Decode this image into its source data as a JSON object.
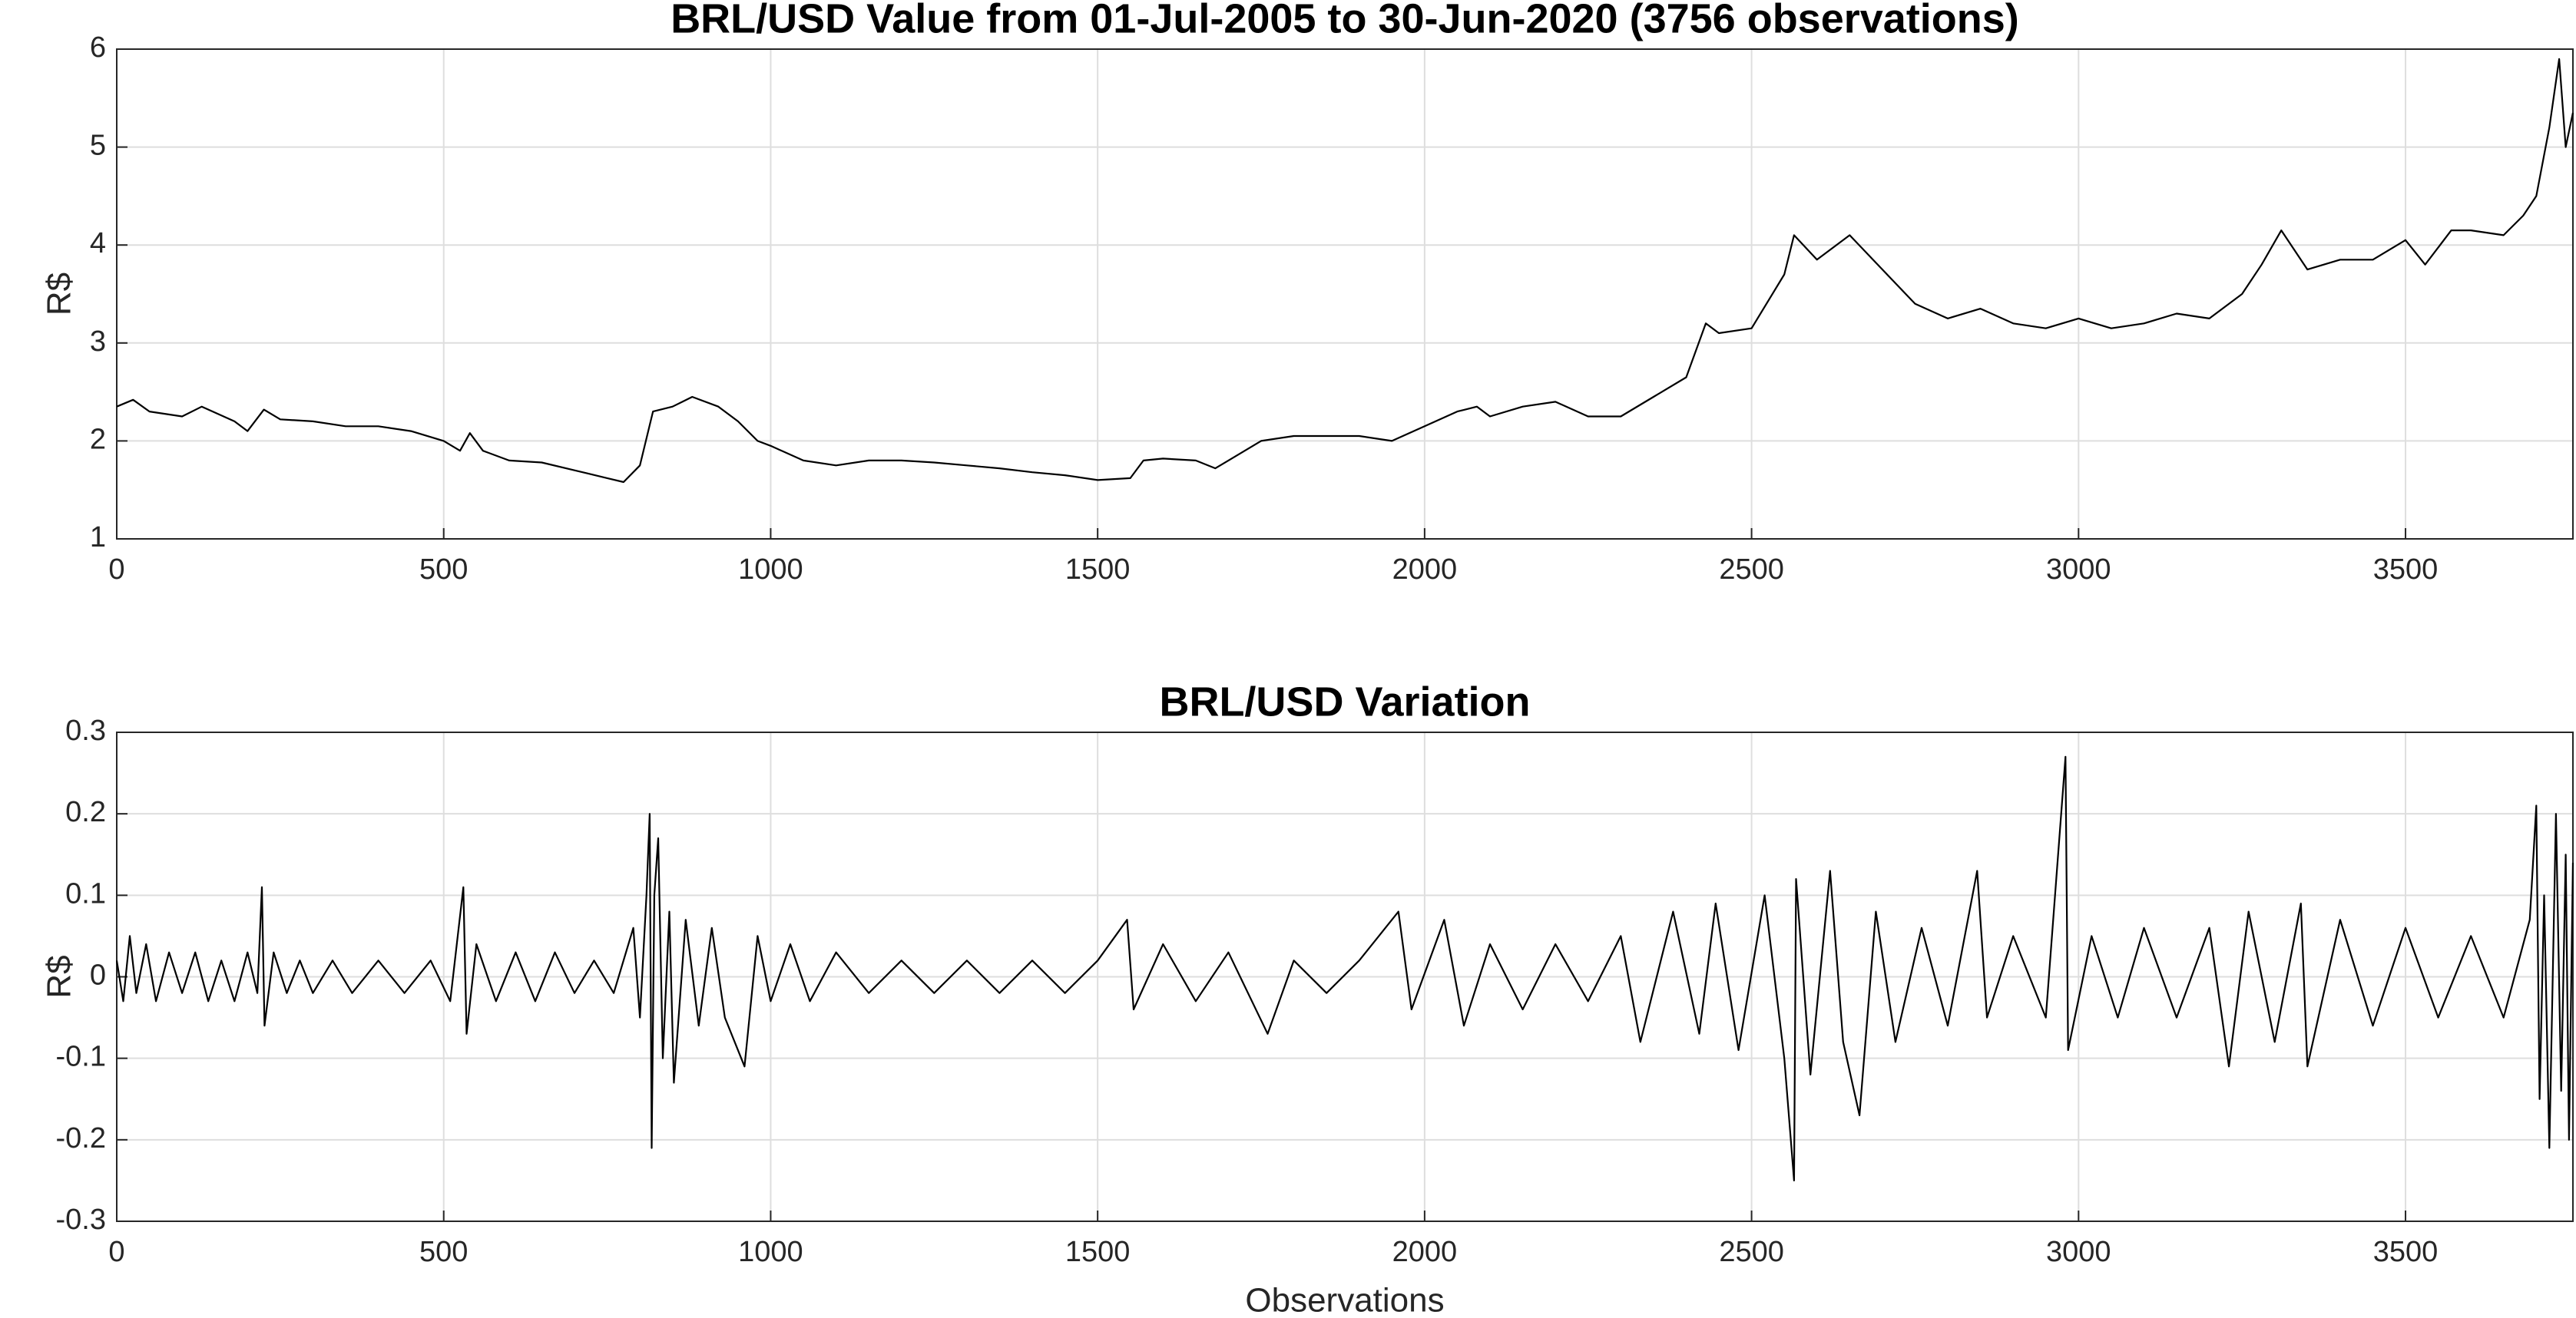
{
  "chart_data": [
    {
      "type": "line",
      "title": "BRL/USD Value from 01-Jul-2005 to 30-Jun-2020 (3756 observations)",
      "y_label": "R$",
      "color": "#000000",
      "grid": true,
      "xlim": [
        0,
        3756
      ],
      "xticks": [
        0,
        500,
        1000,
        1500,
        2000,
        2500,
        3000,
        3500
      ],
      "ylim": [
        1,
        6
      ],
      "yticks": [
        1,
        2,
        3,
        4,
        5,
        6
      ],
      "x": [
        0,
        25,
        50,
        100,
        130,
        180,
        200,
        225,
        250,
        300,
        350,
        400,
        450,
        500,
        525,
        540,
        560,
        600,
        650,
        700,
        750,
        775,
        800,
        820,
        850,
        880,
        920,
        950,
        980,
        1000,
        1050,
        1100,
        1150,
        1200,
        1250,
        1300,
        1350,
        1400,
        1450,
        1500,
        1550,
        1570,
        1600,
        1650,
        1680,
        1700,
        1750,
        1800,
        1850,
        1900,
        1950,
        2000,
        2050,
        2080,
        2100,
        2150,
        2200,
        2250,
        2300,
        2350,
        2400,
        2430,
        2450,
        2500,
        2550,
        2565,
        2600,
        2650,
        2700,
        2750,
        2800,
        2850,
        2900,
        2950,
        3000,
        3050,
        3100,
        3150,
        3200,
        3250,
        3280,
        3310,
        3350,
        3400,
        3450,
        3500,
        3530,
        3570,
        3600,
        3650,
        3680,
        3700,
        3720,
        3735,
        3745,
        3756
      ],
      "values": [
        2.35,
        2.42,
        2.3,
        2.25,
        2.35,
        2.2,
        2.1,
        2.32,
        2.22,
        2.2,
        2.15,
        2.15,
        2.1,
        2.0,
        1.9,
        2.08,
        1.9,
        1.8,
        1.78,
        1.7,
        1.62,
        1.58,
        1.75,
        2.3,
        2.35,
        2.45,
        2.35,
        2.2,
        2.0,
        1.95,
        1.8,
        1.75,
        1.8,
        1.8,
        1.78,
        1.75,
        1.72,
        1.68,
        1.65,
        1.6,
        1.62,
        1.8,
        1.82,
        1.8,
        1.72,
        1.8,
        2.0,
        2.05,
        2.05,
        2.05,
        2.0,
        2.15,
        2.3,
        2.35,
        2.25,
        2.35,
        2.4,
        2.25,
        2.25,
        2.45,
        2.65,
        3.2,
        3.1,
        3.15,
        3.7,
        4.1,
        3.85,
        4.1,
        3.75,
        3.4,
        3.25,
        3.35,
        3.2,
        3.15,
        3.25,
        3.15,
        3.2,
        3.3,
        3.25,
        3.5,
        3.8,
        4.15,
        3.75,
        3.85,
        3.85,
        4.05,
        3.8,
        4.15,
        4.15,
        4.1,
        4.3,
        4.5,
        5.2,
        5.9,
        5.0,
        5.35
      ]
    },
    {
      "type": "line",
      "title": "BRL/USD Variation",
      "y_label": "R$",
      "x_label": "Observations",
      "color": "#000000",
      "grid": true,
      "xlim": [
        0,
        3756
      ],
      "xticks": [
        0,
        500,
        1000,
        1500,
        2000,
        2500,
        3000,
        3500
      ],
      "ylim": [
        -0.3,
        0.3
      ],
      "yticks": [
        -0.3,
        -0.2,
        -0.1,
        0,
        0.1,
        0.2,
        0.3
      ],
      "x": [
        0,
        10,
        20,
        30,
        45,
        60,
        80,
        100,
        120,
        140,
        160,
        180,
        200,
        215,
        222,
        226,
        240,
        260,
        280,
        300,
        330,
        360,
        400,
        440,
        480,
        510,
        530,
        535,
        550,
        580,
        610,
        640,
        670,
        700,
        730,
        760,
        790,
        800,
        810,
        815,
        818,
        822,
        828,
        835,
        845,
        852,
        870,
        890,
        910,
        930,
        960,
        980,
        1000,
        1030,
        1060,
        1100,
        1150,
        1200,
        1250,
        1300,
        1350,
        1400,
        1450,
        1500,
        1545,
        1555,
        1600,
        1650,
        1700,
        1760,
        1800,
        1850,
        1900,
        1960,
        1980,
        2030,
        2060,
        2100,
        2150,
        2200,
        2250,
        2300,
        2330,
        2380,
        2420,
        2445,
        2480,
        2520,
        2550,
        2565,
        2568,
        2590,
        2620,
        2640,
        2665,
        2690,
        2720,
        2760,
        2800,
        2845,
        2860,
        2900,
        2950,
        2980,
        2984,
        3020,
        3060,
        3100,
        3150,
        3200,
        3230,
        3260,
        3300,
        3340,
        3350,
        3400,
        3450,
        3500,
        3550,
        3600,
        3650,
        3690,
        3700,
        3705,
        3712,
        3720,
        3730,
        3738,
        3745,
        3750,
        3756
      ],
      "values": [
        0.02,
        -0.03,
        0.05,
        -0.02,
        0.04,
        -0.03,
        0.03,
        -0.02,
        0.03,
        -0.03,
        0.02,
        -0.03,
        0.03,
        -0.02,
        0.11,
        -0.06,
        0.03,
        -0.02,
        0.02,
        -0.02,
        0.02,
        -0.02,
        0.02,
        -0.02,
        0.02,
        -0.03,
        0.11,
        -0.07,
        0.04,
        -0.03,
        0.03,
        -0.03,
        0.03,
        -0.02,
        0.02,
        -0.02,
        0.06,
        -0.05,
        0.1,
        0.2,
        -0.21,
        0.1,
        0.17,
        -0.1,
        0.08,
        -0.13,
        0.07,
        -0.06,
        0.06,
        -0.05,
        -0.11,
        0.05,
        -0.03,
        0.04,
        -0.03,
        0.03,
        -0.02,
        0.02,
        -0.02,
        0.02,
        -0.02,
        0.02,
        -0.02,
        0.02,
        0.07,
        -0.04,
        0.04,
        -0.03,
        0.03,
        -0.07,
        0.02,
        -0.02,
        0.02,
        0.08,
        -0.04,
        0.07,
        -0.06,
        0.04,
        -0.04,
        0.04,
        -0.03,
        0.05,
        -0.08,
        0.08,
        -0.07,
        0.09,
        -0.09,
        0.1,
        -0.1,
        -0.25,
        0.12,
        -0.12,
        0.13,
        -0.08,
        -0.17,
        0.08,
        -0.08,
        0.06,
        -0.06,
        0.13,
        -0.05,
        0.05,
        -0.05,
        0.27,
        -0.09,
        0.05,
        -0.05,
        0.06,
        -0.05,
        0.06,
        -0.11,
        0.08,
        -0.08,
        0.09,
        -0.11,
        0.07,
        -0.06,
        0.06,
        -0.05,
        0.05,
        -0.05,
        0.07,
        0.21,
        -0.15,
        0.1,
        -0.21,
        0.2,
        -0.14,
        0.15,
        -0.2,
        0.14
      ]
    }
  ]
}
